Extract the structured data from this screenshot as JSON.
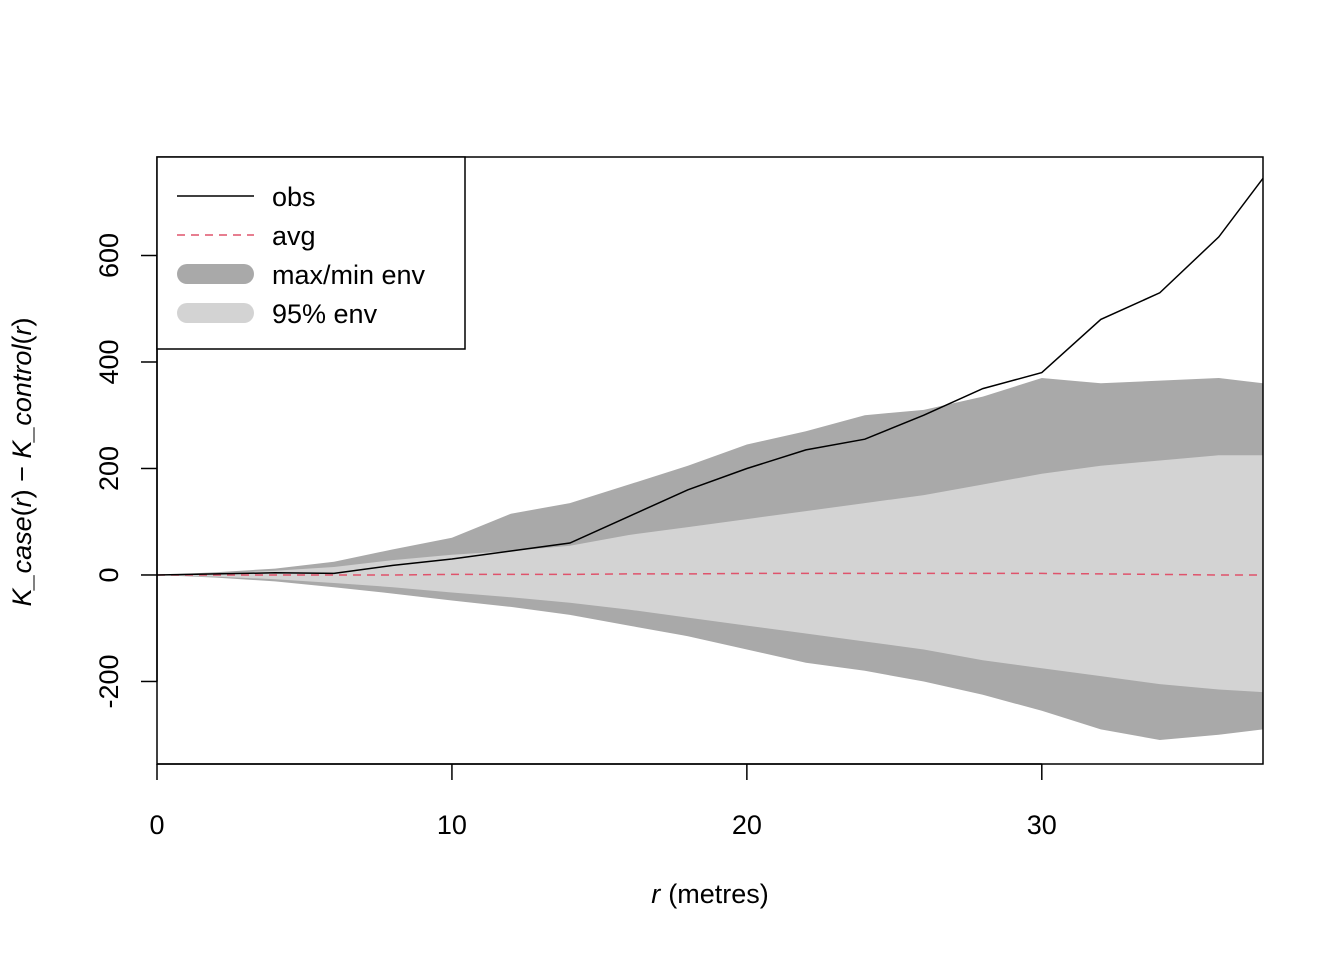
{
  "chart_data": {
    "type": "line",
    "title": "",
    "xlabel": "r",
    "xlabel_unit": "(metres)",
    "ylabel_parts": [
      "K_case",
      "(",
      "r",
      ")",
      " − ",
      "K_control",
      "(",
      "r",
      ")"
    ],
    "xlim": [
      0,
      37.5
    ],
    "ylim": [
      -355,
      785
    ],
    "x_ticks": [
      0,
      10,
      20,
      30
    ],
    "y_ticks": [
      -200,
      0,
      200,
      400,
      600
    ],
    "x_tick_labels": [
      "0",
      "10",
      "20",
      "30"
    ],
    "y_tick_labels": [
      "-200",
      "0",
      "200",
      "400",
      "600"
    ],
    "grid": false,
    "legend_position": "top-left",
    "legend": [
      {
        "label": "obs",
        "style": "solid-line",
        "color": "#000000"
      },
      {
        "label": "avg",
        "style": "dashed-line",
        "color": "#DF536B"
      },
      {
        "label": "max/min env",
        "style": "band",
        "color": "#A9A9A9"
      },
      {
        "label": "95% env",
        "style": "band",
        "color": "#D3D3D3"
      }
    ],
    "x": [
      0,
      2,
      4,
      6,
      8,
      10,
      12,
      14,
      16,
      18,
      20,
      22,
      24,
      26,
      28,
      30,
      32,
      34,
      36,
      37.5
    ],
    "series": [
      {
        "name": "obs",
        "values": [
          0,
          2,
          4,
          3,
          18,
          30,
          45,
          60,
          110,
          160,
          200,
          235,
          255,
          300,
          350,
          380,
          480,
          530,
          635,
          745
        ]
      },
      {
        "name": "avg",
        "values": [
          0,
          0,
          0,
          0,
          0,
          1,
          1,
          1,
          2,
          2,
          3,
          3,
          3,
          3,
          3,
          3,
          2,
          1,
          0,
          0
        ]
      },
      {
        "name": "max env",
        "values": [
          0,
          5,
          12,
          25,
          48,
          70,
          115,
          135,
          170,
          205,
          245,
          270,
          300,
          310,
          335,
          370,
          360,
          365,
          370,
          360
        ]
      },
      {
        "name": "min env",
        "values": [
          0,
          -5,
          -12,
          -23,
          -35,
          -48,
          -60,
          -75,
          -95,
          -115,
          -140,
          -165,
          -180,
          -200,
          -225,
          -255,
          -290,
          -310,
          -300,
          -290
        ]
      },
      {
        "name": "95% hi",
        "values": [
          0,
          3,
          8,
          15,
          28,
          38,
          45,
          55,
          75,
          90,
          105,
          120,
          135,
          150,
          170,
          190,
          205,
          215,
          225,
          225
        ]
      },
      {
        "name": "95% lo",
        "values": [
          0,
          -3,
          -8,
          -15,
          -23,
          -33,
          -42,
          -52,
          -65,
          -80,
          -95,
          -110,
          -125,
          -140,
          -160,
          -175,
          -190,
          -205,
          -215,
          -220
        ]
      }
    ]
  }
}
